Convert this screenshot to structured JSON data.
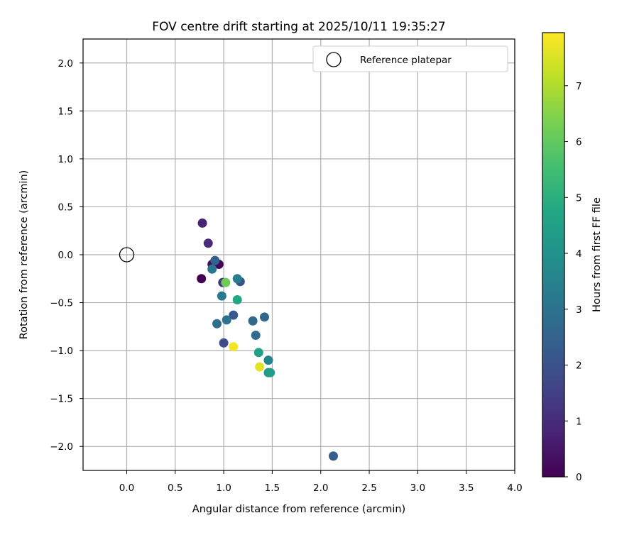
{
  "chart_data": {
    "type": "scatter",
    "title": "FOV centre drift starting at 2025/10/11 19:35:27",
    "xlabel": "Angular distance from reference (arcmin)",
    "ylabel": "Rotation from reference (arcmin)",
    "xlim": [
      -0.45,
      4.0
    ],
    "ylim": [
      -2.25,
      2.25
    ],
    "xticks": [
      "0.0",
      "0.5",
      "1.0",
      "1.5",
      "2.0",
      "2.5",
      "3.0",
      "3.5",
      "4.0"
    ],
    "xtick_values": [
      0.0,
      0.5,
      1.0,
      1.5,
      2.0,
      2.5,
      3.0,
      3.5,
      4.0
    ],
    "yticks": [
      "2.0",
      "1.5",
      "1.0",
      "0.5",
      "0.0",
      "−0.5",
      "−1.0",
      "−1.5",
      "−2.0"
    ],
    "ytick_values": [
      2.0,
      1.5,
      1.0,
      0.5,
      0.0,
      -0.5,
      -1.0,
      -1.5,
      -2.0
    ],
    "grid": true,
    "legend": {
      "location": "upper right",
      "entries": [
        "Reference platepar"
      ]
    },
    "reference_point": {
      "x": 0.0,
      "y": 0.0
    },
    "colorbar": {
      "label": "Hours from first FF file",
      "colormap": "viridis",
      "range": [
        0,
        7.95
      ],
      "ticks": [
        "0",
        "1",
        "2",
        "3",
        "4",
        "5",
        "6",
        "7"
      ],
      "tick_values": [
        0,
        1,
        2,
        3,
        4,
        5,
        6,
        7
      ]
    },
    "series": [
      {
        "points": [
          {
            "x": 0.77,
            "y": -0.25,
            "hours": 0.0
          },
          {
            "x": 0.95,
            "y": -0.1,
            "hours": 0.1
          },
          {
            "x": 0.88,
            "y": -0.1,
            "hours": 0.3
          },
          {
            "x": 0.78,
            "y": 0.33,
            "hours": 0.8
          },
          {
            "x": 0.84,
            "y": 0.12,
            "hours": 1.0
          },
          {
            "x": 0.99,
            "y": -0.29,
            "hours": 1.2
          },
          {
            "x": 1.0,
            "y": -0.92,
            "hours": 1.8
          },
          {
            "x": 1.17,
            "y": -0.28,
            "hours": 2.0
          },
          {
            "x": 1.1,
            "y": -0.63,
            "hours": 2.2
          },
          {
            "x": 0.91,
            "y": -0.06,
            "hours": 2.5
          },
          {
            "x": 1.42,
            "y": -0.65,
            "hours": 2.6
          },
          {
            "x": 1.3,
            "y": -0.69,
            "hours": 2.7
          },
          {
            "x": 1.33,
            "y": -0.84,
            "hours": 2.8
          },
          {
            "x": 0.93,
            "y": -0.72,
            "hours": 2.9
          },
          {
            "x": 1.03,
            "y": -0.68,
            "hours": 3.0
          },
          {
            "x": 2.13,
            "y": -2.1,
            "hours": 2.3
          },
          {
            "x": 0.88,
            "y": -0.15,
            "hours": 3.1
          },
          {
            "x": 0.98,
            "y": -0.43,
            "hours": 3.2
          },
          {
            "x": 1.14,
            "y": -0.25,
            "hours": 3.3
          },
          {
            "x": 1.46,
            "y": -1.1,
            "hours": 3.6
          },
          {
            "x": 1.46,
            "y": -1.23,
            "hours": 4.2
          },
          {
            "x": 1.48,
            "y": -1.23,
            "hours": 4.4
          },
          {
            "x": 1.36,
            "y": -1.02,
            "hours": 4.5
          },
          {
            "x": 1.14,
            "y": -0.47,
            "hours": 4.7
          },
          {
            "x": 1.02,
            "y": -0.29,
            "hours": 6.2
          },
          {
            "x": 1.1,
            "y": -0.96,
            "hours": 7.8
          },
          {
            "x": 1.37,
            "y": -1.17,
            "hours": 7.6
          }
        ]
      }
    ]
  }
}
